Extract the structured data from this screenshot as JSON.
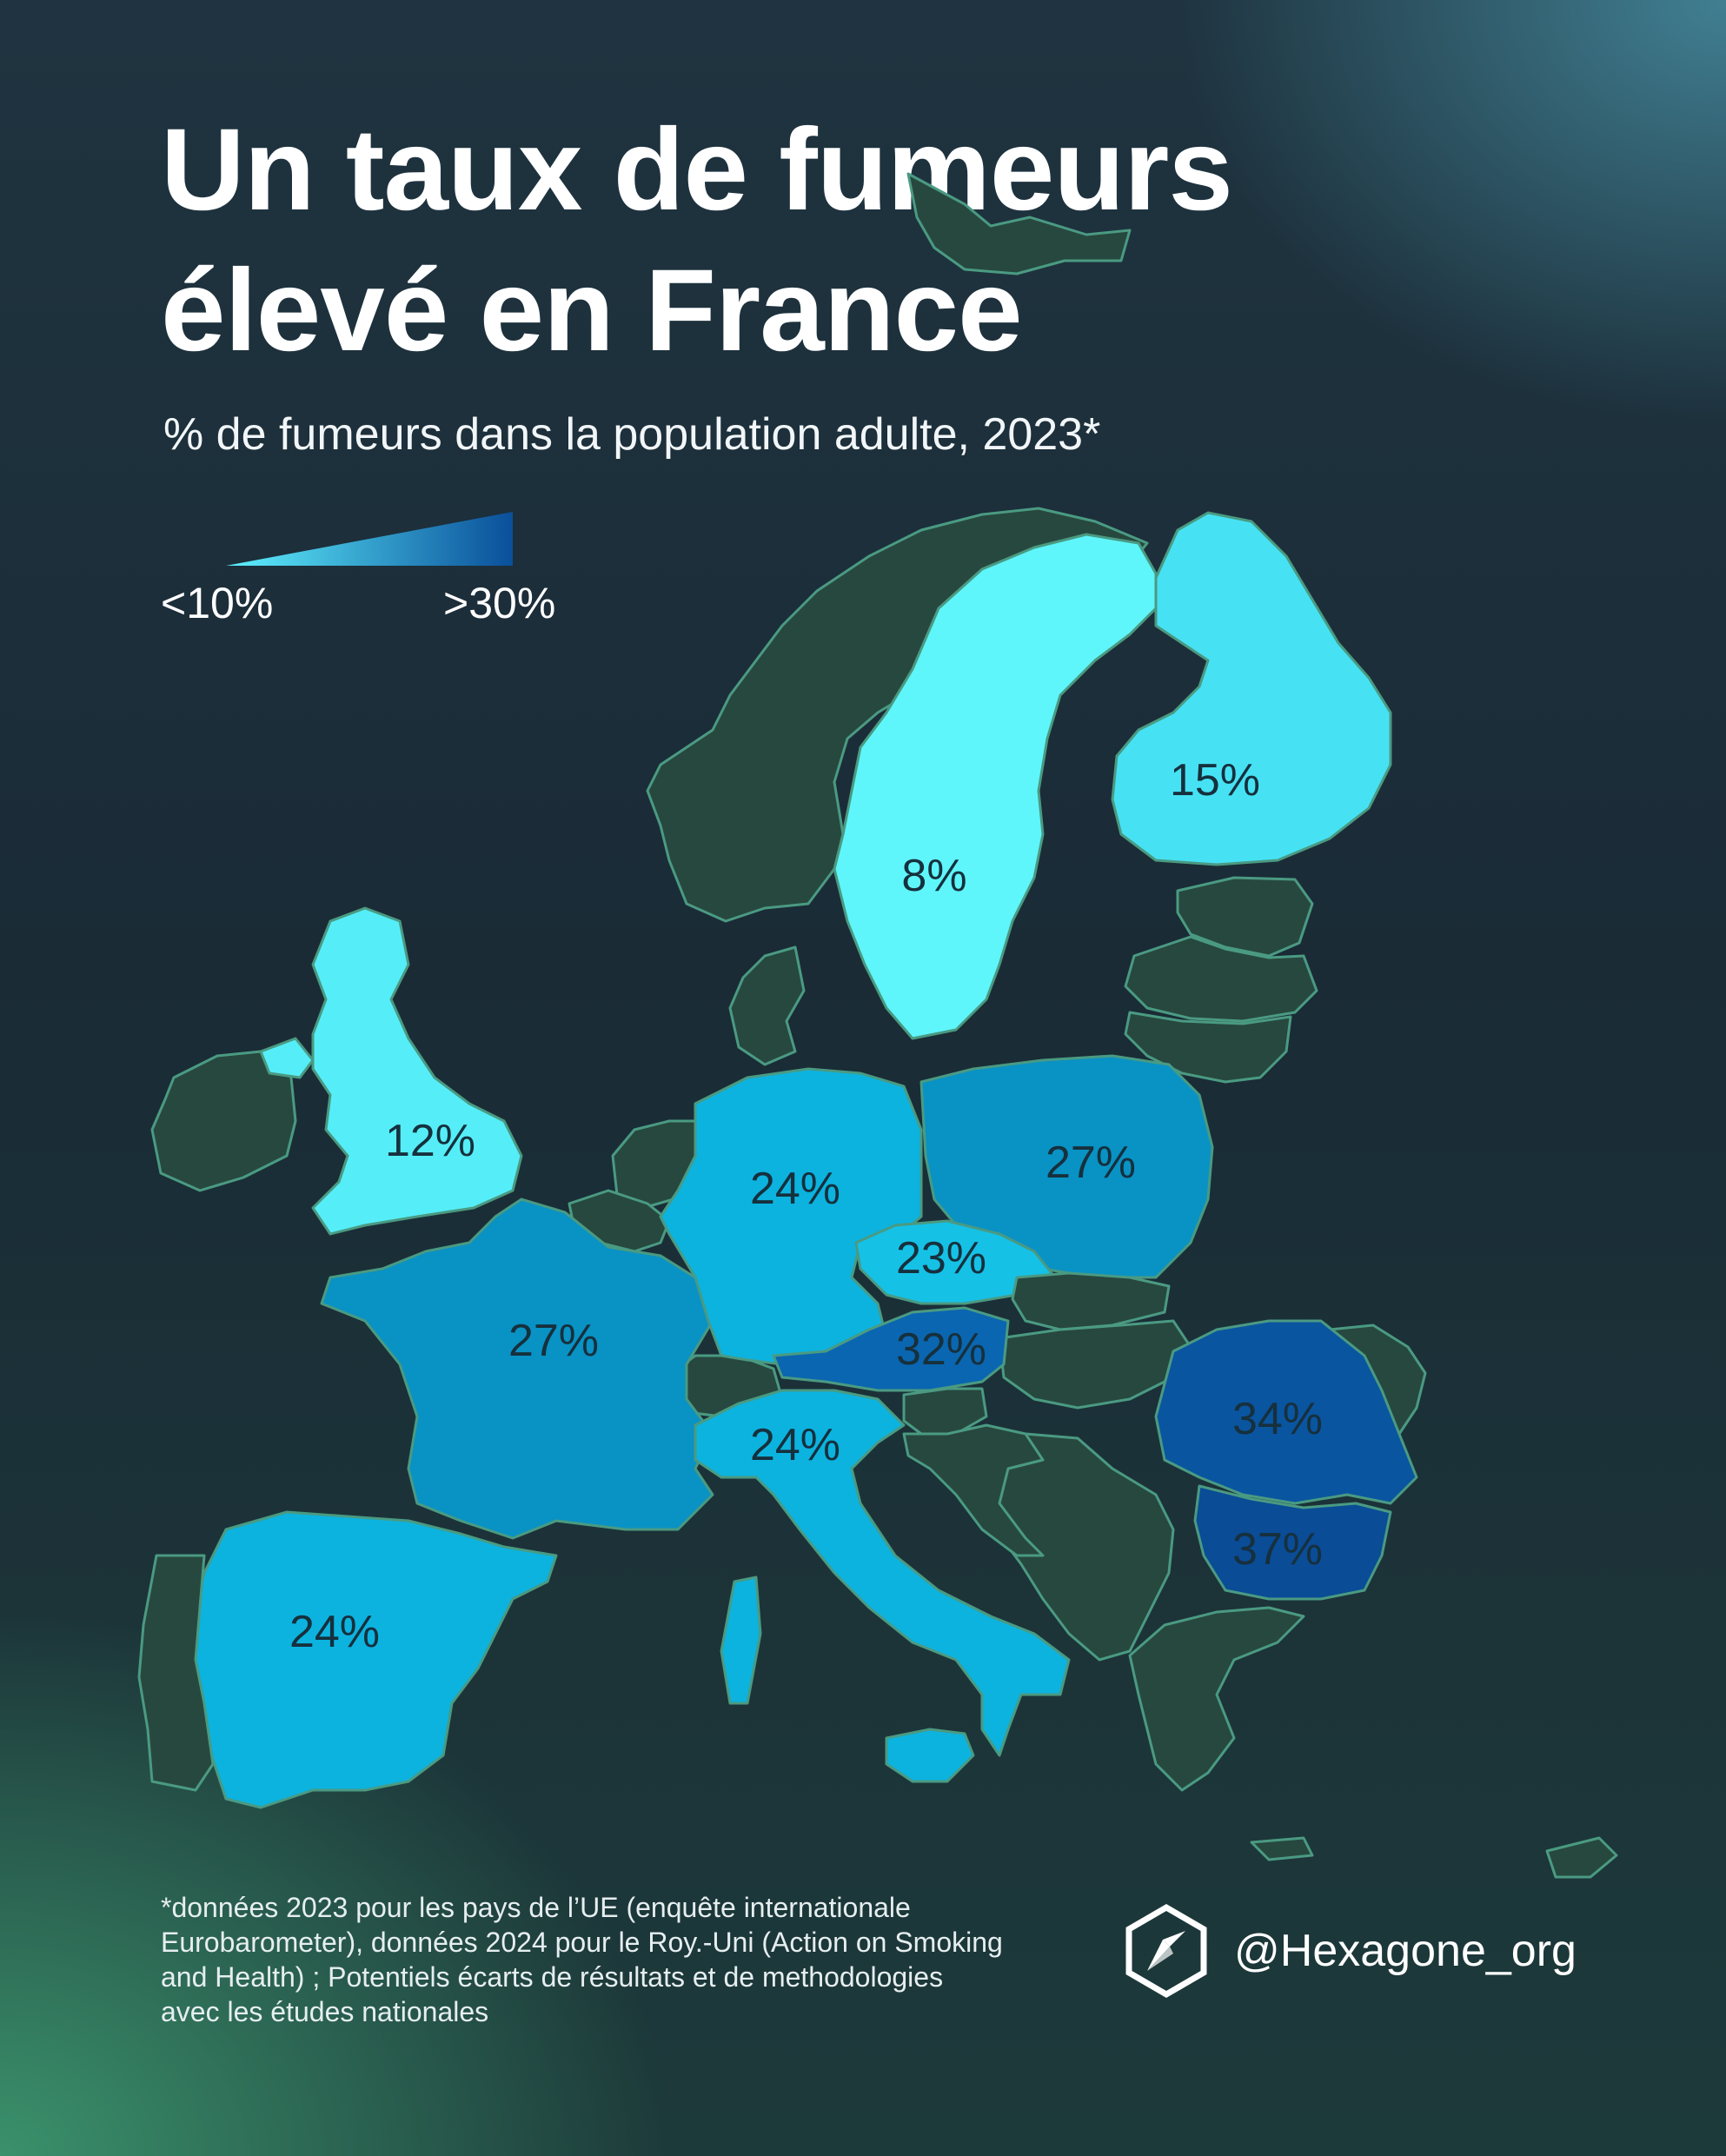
{
  "title": {
    "line1": "Un taux de fumeurs",
    "line2": "élevé en France"
  },
  "subtitle": "% de fumeurs dans la population adulte, 2023*",
  "legend": {
    "min_label": "<10%",
    "max_label": ">30%",
    "color_low": "#5ff2ff",
    "color_high": "#0a4f9a"
  },
  "colors": {
    "no_data": "#27483f",
    "border": "#4a9a82"
  },
  "countries": [
    {
      "id": "sweden",
      "label": "8%",
      "value": 8,
      "color": "#5ef6fb"
    },
    {
      "id": "united-kingdom",
      "label": "12%",
      "value": 12,
      "color": "#55eef8"
    },
    {
      "id": "finland",
      "label": "15%",
      "value": 15,
      "color": "#46e2f4"
    },
    {
      "id": "czechia",
      "label": "23%",
      "value": 23,
      "color": "#16c1e6"
    },
    {
      "id": "germany",
      "label": "24%",
      "value": 24,
      "color": "#0cb3df"
    },
    {
      "id": "italy",
      "label": "24%",
      "value": 24,
      "color": "#0cb3df"
    },
    {
      "id": "spain",
      "label": "24%",
      "value": 24,
      "color": "#0cb3df"
    },
    {
      "id": "france",
      "label": "27%",
      "value": 27,
      "color": "#0992c4"
    },
    {
      "id": "poland",
      "label": "27%",
      "value": 27,
      "color": "#0992c4"
    },
    {
      "id": "austria",
      "label": "32%",
      "value": 32,
      "color": "#0a66b0"
    },
    {
      "id": "romania",
      "label": "34%",
      "value": 34,
      "color": "#0a55a0"
    },
    {
      "id": "bulgaria",
      "label": "37%",
      "value": 37,
      "color": "#0a4c96"
    }
  ],
  "footnote": {
    "line1": "*données 2023 pour les pays de l’UE (enquête internationale",
    "line2": "Eurobarometer), données 2024 pour le Roy.-Uni (Action on Smoking",
    "line3": "and Health)  ; Potentiels écarts de résultats et de methodologies",
    "line4": "avec les études nationales"
  },
  "brand": {
    "handle": "@Hexagone_org",
    "icon": "compass-icon"
  }
}
